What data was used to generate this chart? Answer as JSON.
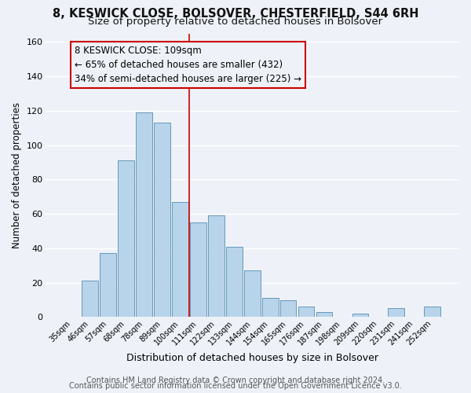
{
  "title": "8, KESWICK CLOSE, BOLSOVER, CHESTERFIELD, S44 6RH",
  "subtitle": "Size of property relative to detached houses in Bolsover",
  "xlabel": "Distribution of detached houses by size in Bolsover",
  "ylabel": "Number of detached properties",
  "bar_labels": [
    "35sqm",
    "46sqm",
    "57sqm",
    "68sqm",
    "78sqm",
    "89sqm",
    "100sqm",
    "111sqm",
    "122sqm",
    "133sqm",
    "144sqm",
    "154sqm",
    "165sqm",
    "176sqm",
    "187sqm",
    "198sqm",
    "209sqm",
    "220sqm",
    "231sqm",
    "241sqm",
    "252sqm"
  ],
  "bar_values": [
    0,
    21,
    37,
    91,
    119,
    113,
    67,
    55,
    59,
    41,
    27,
    11,
    10,
    6,
    3,
    0,
    2,
    0,
    5,
    0,
    6
  ],
  "bar_color": "#b8d4ea",
  "bar_edge_color": "#6699bb",
  "annotation_line1": "8 KESWICK CLOSE: 109sqm",
  "annotation_line2": "← 65% of detached houses are smaller (432)",
  "annotation_line3": "34% of semi-detached houses are larger (225) →",
  "annotation_box_edge": "#cc0000",
  "vline_x": 7.0,
  "vline_color": "#cc0000",
  "ylim": [
    0,
    165
  ],
  "yticks": [
    0,
    20,
    40,
    60,
    80,
    100,
    120,
    140,
    160
  ],
  "footer1": "Contains HM Land Registry data © Crown copyright and database right 2024.",
  "footer2": "Contains public sector information licensed under the Open Government Licence v3.0.",
  "bg_color": "#eef2f8",
  "grid_color": "#ffffff",
  "title_fontsize": 10.5,
  "subtitle_fontsize": 9.5,
  "annotation_fontsize": 8.5,
  "footer_fontsize": 7.0,
  "ylabel_fontsize": 8.5,
  "xlabel_fontsize": 9.0
}
